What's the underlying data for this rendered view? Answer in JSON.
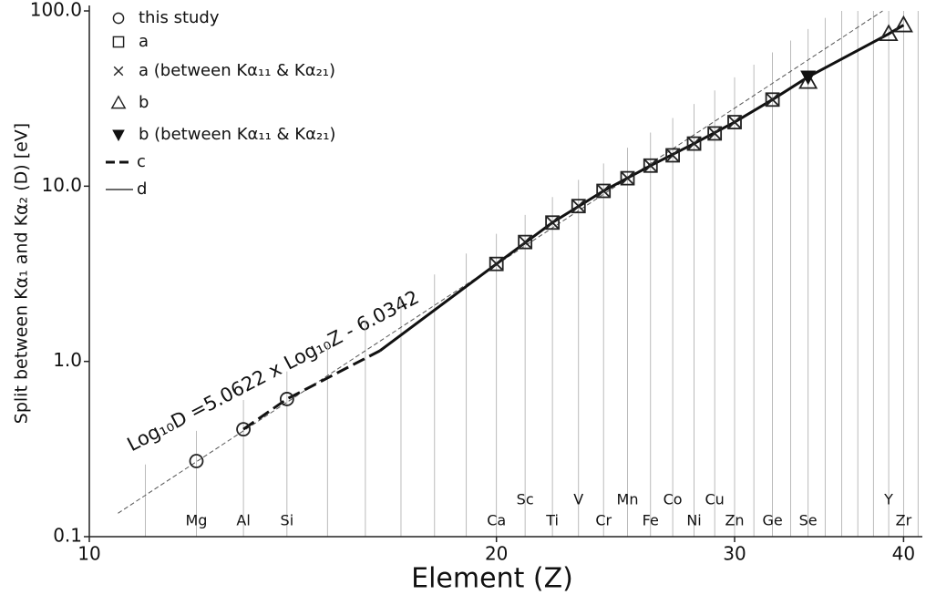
{
  "chart_data": {
    "type": "scatter",
    "xlabel": "Element (Z)",
    "ylabel": "Split between Kα₁ and Kα₂  (D)     [eV]",
    "annotation": "Log₁₀D =5.0622 x Log₁₀Z - 6.0342",
    "xscale": "log",
    "yscale": "log",
    "xlim": [
      10,
      41.3
    ],
    "ylim": [
      0.1,
      100
    ],
    "xticks": [
      10,
      20,
      30,
      40
    ],
    "yticks": [
      0.1,
      {
        "value": 1,
        "label": "1.0"
      },
      {
        "value": 10,
        "label": "10.0"
      },
      {
        "value": 100,
        "label": "100.0"
      }
    ],
    "legend": "upper left",
    "series": [
      {
        "name": "this study",
        "marker": "circle",
        "color": "#222222",
        "x": [
          12,
          13,
          14
        ],
        "values": [
          0.27,
          0.41,
          0.61
        ]
      },
      {
        "name": "a",
        "marker": "square",
        "color": "#222222",
        "x": [
          20,
          21,
          22,
          23,
          24,
          25,
          26,
          27,
          28,
          29,
          30,
          32
        ],
        "values": [
          3.6,
          4.8,
          6.2,
          7.7,
          9.4,
          11.1,
          13.1,
          15.0,
          17.5,
          20.0,
          23.2,
          31.2
        ]
      },
      {
        "name": "a (between Kα₁₁ & Kα₂₁)",
        "marker": "x",
        "color": "#222222",
        "x": [
          20,
          21,
          22,
          23,
          24,
          25,
          26,
          27,
          28,
          29,
          30,
          32
        ],
        "values": [
          3.6,
          4.8,
          6.2,
          7.7,
          9.4,
          11.1,
          13.1,
          15.0,
          17.5,
          20.0,
          23.2,
          31.2
        ]
      },
      {
        "name": "b",
        "marker": "triangle",
        "color": "#222222",
        "x": [
          34,
          39,
          40
        ],
        "values": [
          39.5,
          74,
          83
        ]
      },
      {
        "name": "b (between Kα₁₁ & Kα₂₁)",
        "marker": "triangle-down",
        "color": "#111111",
        "x": [
          34
        ],
        "values": [
          42
        ]
      },
      {
        "name": "c",
        "line": "dashed",
        "color": "#111111",
        "x": [
          13,
          14,
          16.4
        ],
        "values": [
          0.41,
          0.61,
          1.15
        ]
      },
      {
        "name": "d",
        "line": "solid",
        "color": "#111111",
        "x": [
          16.4,
          20,
          22,
          24,
          26,
          28,
          30,
          32,
          34,
          39,
          40
        ],
        "values": [
          1.15,
          3.6,
          6.2,
          9.4,
          13.1,
          17.5,
          23.2,
          31.2,
          42,
          74,
          83
        ]
      }
    ],
    "fit": {
      "color": "#555555",
      "x": [
        10.5,
        38.6
      ],
      "values": [
        0.136,
        100
      ]
    },
    "elements": {
      "z": [
        12,
        13,
        14,
        20,
        21,
        22,
        23,
        24,
        25,
        26,
        27,
        28,
        29,
        30,
        32,
        34,
        39,
        40
      ],
      "labels": [
        "Mg",
        "Al",
        "Si",
        "Ca",
        "Sc",
        "Ti",
        "V",
        "Cr",
        "Mn",
        "Fe",
        "Co",
        "Ni",
        "Cu",
        "Zn",
        "Ge",
        "Se",
        "Y",
        "Zr"
      ]
    }
  }
}
